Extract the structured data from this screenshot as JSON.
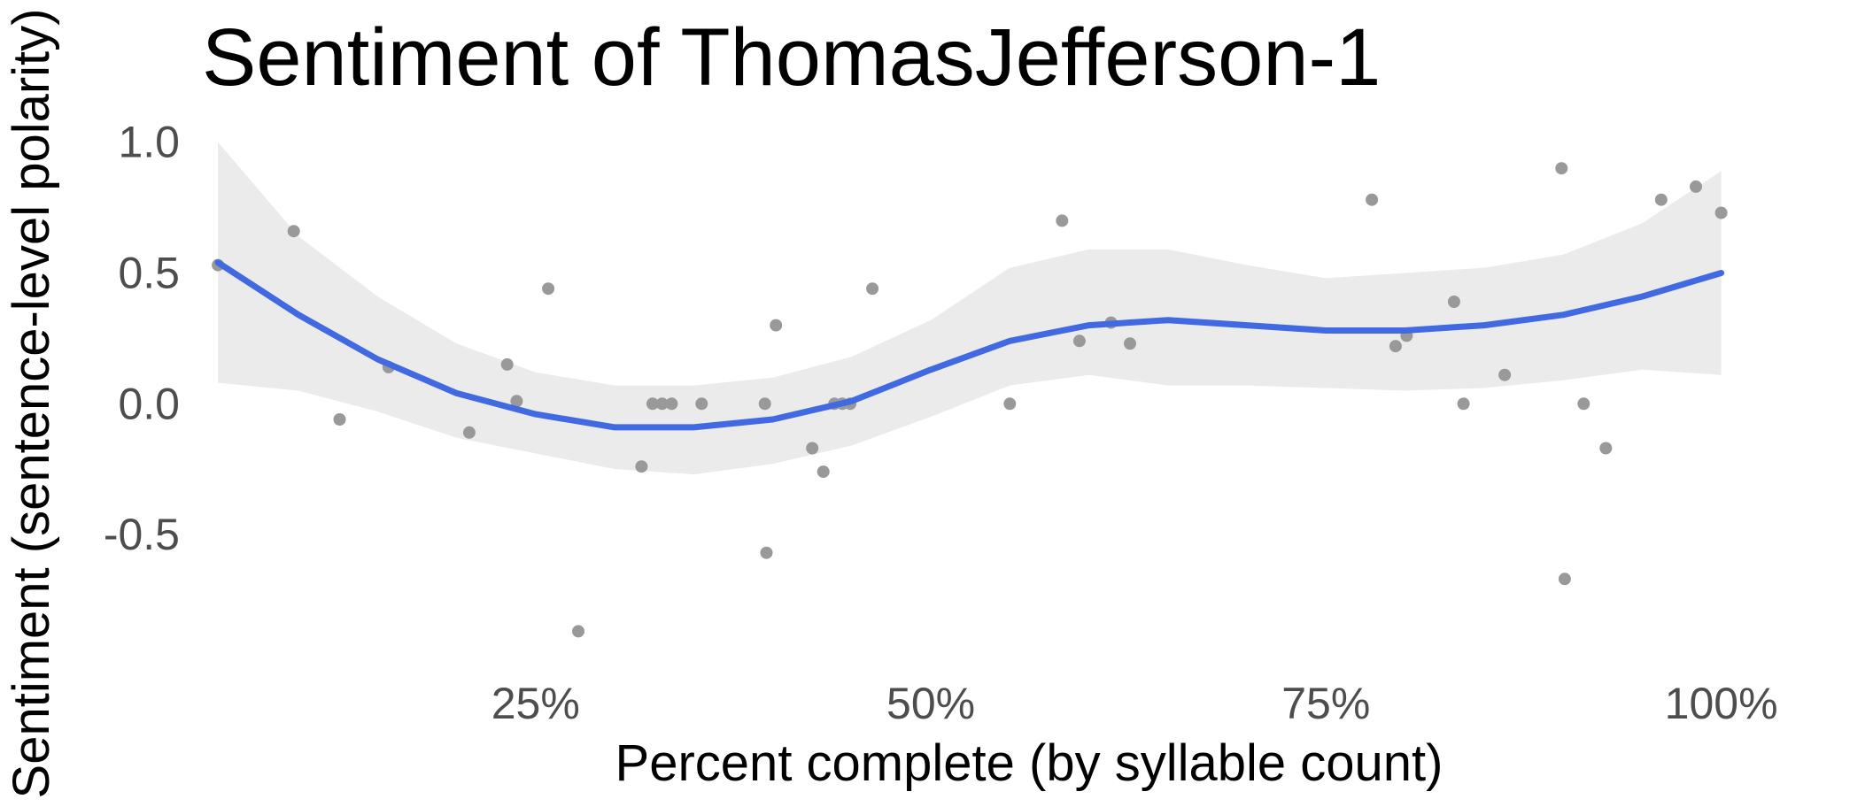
{
  "chart_data": {
    "type": "scatter",
    "title": "Sentiment of ThomasJefferson-1",
    "xlabel": "Percent complete (by syllable count)",
    "ylabel": "Sentiment (sentence-level polarity)",
    "x_ticks": [
      {
        "value": 25,
        "label": "25%"
      },
      {
        "value": 50,
        "label": "50%"
      },
      {
        "value": 75,
        "label": "75%"
      },
      {
        "value": 100,
        "label": "100%"
      }
    ],
    "y_ticks": [
      {
        "value": 1.0,
        "label": "1.0"
      },
      {
        "value": 0.5,
        "label": "0.5"
      },
      {
        "value": 0.0,
        "label": "0.0"
      },
      {
        "value": -0.5,
        "label": "-0.5"
      }
    ],
    "xlim": [
      4,
      104
    ],
    "ylim": [
      -0.96,
      1.07
    ],
    "grid": false,
    "legend": "none",
    "colors": {
      "points": "#999999",
      "smooth_line": "#4169e1",
      "confidence_band": "#ebebeb"
    },
    "series": [
      {
        "type": "points",
        "points": [
          [
            4.9,
            0.53
          ],
          [
            9.7,
            0.66
          ],
          [
            12.6,
            -0.06
          ],
          [
            15.7,
            0.14
          ],
          [
            20.8,
            -0.11
          ],
          [
            23.2,
            0.15
          ],
          [
            23.8,
            0.01
          ],
          [
            25.8,
            0.44
          ],
          [
            27.7,
            -0.87
          ],
          [
            31.7,
            -0.24
          ],
          [
            32.4,
            0.0
          ],
          [
            33.0,
            0.0
          ],
          [
            33.6,
            0.0
          ],
          [
            35.5,
            0.0
          ],
          [
            39.5,
            0.0
          ],
          [
            39.6,
            -0.57
          ],
          [
            40.2,
            0.3
          ],
          [
            42.5,
            -0.17
          ],
          [
            43.2,
            -0.26
          ],
          [
            43.9,
            0.0
          ],
          [
            44.4,
            0.0
          ],
          [
            44.9,
            0.0
          ],
          [
            46.3,
            0.44
          ],
          [
            55.0,
            0.0
          ],
          [
            58.3,
            0.7
          ],
          [
            59.4,
            0.24
          ],
          [
            61.4,
            0.31
          ],
          [
            62.6,
            0.23
          ],
          [
            77.9,
            0.78
          ],
          [
            79.4,
            0.22
          ],
          [
            80.1,
            0.26
          ],
          [
            83.1,
            0.39
          ],
          [
            83.7,
            0.0
          ],
          [
            86.3,
            0.11
          ],
          [
            89.9,
            0.9
          ],
          [
            90.1,
            -0.67
          ],
          [
            91.3,
            0.0
          ],
          [
            92.7,
            -0.17
          ],
          [
            96.2,
            0.78
          ],
          [
            98.4,
            0.83
          ],
          [
            100.0,
            0.73
          ]
        ]
      },
      {
        "type": "smooth",
        "x": [
          4.9,
          10,
          15,
          20,
          25,
          30,
          35,
          40,
          45,
          50,
          55,
          60,
          65,
          70,
          75,
          80,
          85,
          90,
          95,
          100
        ],
        "y": [
          0.54,
          0.34,
          0.17,
          0.04,
          -0.04,
          -0.09,
          -0.09,
          -0.06,
          0.01,
          0.13,
          0.24,
          0.3,
          0.32,
          0.3,
          0.28,
          0.28,
          0.3,
          0.34,
          0.41,
          0.5
        ],
        "lower": [
          0.08,
          0.05,
          -0.03,
          -0.13,
          -0.19,
          -0.25,
          -0.27,
          -0.23,
          -0.16,
          -0.05,
          0.07,
          0.11,
          0.07,
          0.07,
          0.06,
          0.05,
          0.06,
          0.09,
          0.13,
          0.11
        ],
        "upper": [
          1.0,
          0.64,
          0.41,
          0.23,
          0.12,
          0.07,
          0.07,
          0.1,
          0.18,
          0.32,
          0.52,
          0.59,
          0.59,
          0.53,
          0.48,
          0.5,
          0.52,
          0.57,
          0.69,
          0.89
        ]
      }
    ]
  }
}
